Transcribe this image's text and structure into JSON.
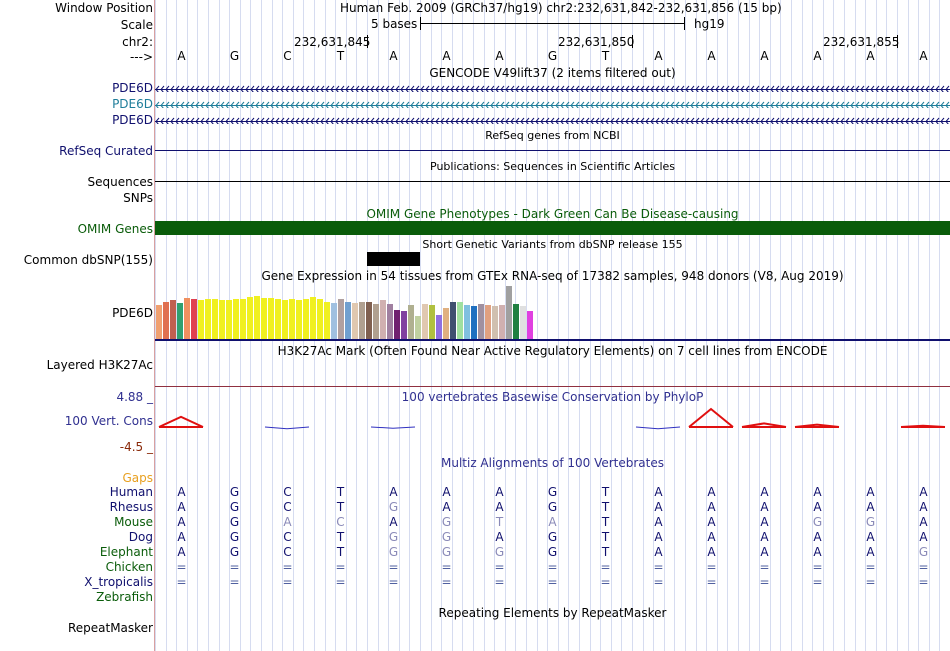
{
  "header": {
    "window_position_label": "Window Position",
    "window_position_text": "Human Feb. 2009 (GRCh37/hg19)   chr2:232,631,842-232,631,856 (15 bp)",
    "scale_label": "Scale",
    "scale_text": "5 bases",
    "scale_db": "hg19",
    "chrom_label": "chr2:",
    "coords": [
      "232,631,845",
      "232,631,850",
      "232,631,855"
    ],
    "strand_label": "--->"
  },
  "sequence": [
    "A",
    "G",
    "C",
    "T",
    "A",
    "A",
    "A",
    "G",
    "T",
    "A",
    "A",
    "A",
    "A",
    "A",
    "A"
  ],
  "tracks": {
    "gencode": {
      "title": "GENCODE V49lift37 (2 items filtered out)",
      "items": [
        {
          "label": "PDE6D",
          "color": "#10106e"
        },
        {
          "label": "PDE6D",
          "color": "#1e7d9a"
        },
        {
          "label": "PDE6D",
          "color": "#10106e"
        }
      ]
    },
    "refseq": {
      "title": "RefSeq genes from NCBI",
      "label": "RefSeq Curated"
    },
    "publications": {
      "title": "Publications: Sequences in Scientific Articles",
      "label": "Sequences"
    },
    "snps": {
      "label": "SNPs"
    },
    "omim": {
      "title": "OMIM Gene Phenotypes - Dark Green Can Be Disease-causing",
      "label": "OMIM Genes",
      "color": "#0a5c0a"
    },
    "dbsnp": {
      "title": "Short Genetic Variants from dbSNP release 155",
      "label": "Common dbSNP(155)"
    },
    "gtex": {
      "title": "Gene Expression in 54 tissues from GTEx RNA-seq of 17382 samples, 948 donors (V8, Aug 2019)",
      "label": "PDE6D"
    },
    "h3k27ac": {
      "title": "H3K27Ac Mark (Often Found Near Active Regulatory Elements) on 7 cell lines from ENCODE",
      "label": "Layered H3K27Ac"
    },
    "phylop": {
      "title": "100 vertebrates Basewise Conservation by PhyloP",
      "label": "100 Vert. Cons",
      "ymax": "4.88 _",
      "ymin": "-4.5 _"
    },
    "multiz": {
      "title": "Multiz Alignments of 100 Vertebrates",
      "gaps_label": "Gaps",
      "species": [
        {
          "name": "Human",
          "bases": [
            "A",
            "G",
            "C",
            "T",
            "A",
            "A",
            "A",
            "G",
            "T",
            "A",
            "A",
            "A",
            "A",
            "A",
            "A"
          ]
        },
        {
          "name": "Rhesus",
          "bases": [
            "A",
            "G",
            "C",
            "T",
            "G",
            "A",
            "A",
            "G",
            "T",
            "A",
            "A",
            "A",
            "A",
            "A",
            "A"
          ]
        },
        {
          "name": "Mouse",
          "bases": [
            "A",
            "G",
            "A",
            "C",
            "A",
            "G",
            "T",
            "A",
            "T",
            "A",
            "A",
            "A",
            "G",
            "G",
            "A"
          ]
        },
        {
          "name": "Dog",
          "bases": [
            "A",
            "G",
            "C",
            "T",
            "G",
            "G",
            "A",
            "G",
            "T",
            "A",
            "A",
            "A",
            "A",
            "A",
            "A"
          ]
        },
        {
          "name": "Elephant",
          "bases": [
            "A",
            "G",
            "C",
            "T",
            "G",
            "G",
            "G",
            "G",
            "T",
            "A",
            "A",
            "A",
            "A",
            "A",
            "G"
          ]
        },
        {
          "name": "Chicken",
          "bases": [
            "=",
            "=",
            "=",
            "=",
            "=",
            "=",
            "=",
            "=",
            "=",
            "=",
            "=",
            "=",
            "=",
            "=",
            "="
          ]
        },
        {
          "name": "X_tropicalis",
          "bases": [
            "=",
            "=",
            "=",
            "=",
            "=",
            "=",
            "=",
            "=",
            "=",
            "=",
            "=",
            "=",
            "=",
            "=",
            "="
          ]
        },
        {
          "name": "Zebrafish",
          "bases": []
        }
      ]
    },
    "repeatmasker": {
      "title": "Repeating Elements by RepeatMasker",
      "label": "RepeatMasker"
    }
  },
  "colors": {
    "navy": "#10106e",
    "teal": "#1e7d9a",
    "omim_green": "#0a5c0a",
    "orange_gaps": "#e8a020",
    "phylop_red": "#e01010",
    "phylop_blue": "#3030c0",
    "grid": "#d6dcf0"
  },
  "gtex_bars": [
    {
      "color": "#f0a070",
      "value": 0.62
    },
    {
      "color": "#e07050",
      "value": 0.68
    },
    {
      "color": "#c06050",
      "value": 0.7
    },
    {
      "color": "#30a070",
      "value": 0.66
    },
    {
      "color": "#f09060",
      "value": 0.74
    },
    {
      "color": "#e04050",
      "value": 0.72
    },
    {
      "color": "#f0f020",
      "value": 0.7
    },
    {
      "color": "#f0f020",
      "value": 0.72
    },
    {
      "color": "#f0f020",
      "value": 0.72
    },
    {
      "color": "#f0f020",
      "value": 0.7
    },
    {
      "color": "#f0f020",
      "value": 0.7
    },
    {
      "color": "#f0f020",
      "value": 0.72
    },
    {
      "color": "#f0f020",
      "value": 0.72
    },
    {
      "color": "#f0f020",
      "value": 0.76
    },
    {
      "color": "#f0f020",
      "value": 0.78
    },
    {
      "color": "#f0f020",
      "value": 0.74
    },
    {
      "color": "#f0f020",
      "value": 0.74
    },
    {
      "color": "#f0f020",
      "value": 0.72
    },
    {
      "color": "#f0f020",
      "value": 0.7
    },
    {
      "color": "#f0f020",
      "value": 0.72
    },
    {
      "color": "#f0f020",
      "value": 0.7
    },
    {
      "color": "#f0f020",
      "value": 0.72
    },
    {
      "color": "#f0f020",
      "value": 0.76
    },
    {
      "color": "#f0f020",
      "value": 0.72
    },
    {
      "color": "#f0f020",
      "value": 0.68
    },
    {
      "color": "#a0c0e0",
      "value": 0.66
    },
    {
      "color": "#b0a0a0",
      "value": 0.72
    },
    {
      "color": "#70a0d0",
      "value": 0.68
    },
    {
      "color": "#e0c8b0",
      "value": 0.66
    },
    {
      "color": "#b0a090",
      "value": 0.68
    },
    {
      "color": "#806050",
      "value": 0.68
    },
    {
      "color": "#b0a090",
      "value": 0.64
    },
    {
      "color": "#d0b0b0",
      "value": 0.7
    },
    {
      "color": "#a080a0",
      "value": 0.64
    },
    {
      "color": "#702070",
      "value": 0.52
    },
    {
      "color": "#8040a0",
      "value": 0.5
    },
    {
      "color": "#b0b090",
      "value": 0.62
    },
    {
      "color": "#c0d0a0",
      "value": 0.42
    },
    {
      "color": "#e0c8b0",
      "value": 0.64
    },
    {
      "color": "#b0c040",
      "value": 0.62
    },
    {
      "color": "#9070e0",
      "value": 0.44
    },
    {
      "color": "#e0b080",
      "value": 0.56
    },
    {
      "color": "#405070",
      "value": 0.68
    },
    {
      "color": "#a0e0a0",
      "value": 0.68
    },
    {
      "color": "#80c0e0",
      "value": 0.62
    },
    {
      "color": "#2070c0",
      "value": 0.6
    },
    {
      "color": "#a090a0",
      "value": 0.64
    },
    {
      "color": "#e0a080",
      "value": 0.62
    },
    {
      "color": "#d0c0b0",
      "value": 0.6
    },
    {
      "color": "#d0b0b0",
      "value": 0.62
    },
    {
      "color": "#a0a0a0",
      "value": 0.96
    },
    {
      "color": "#208040",
      "value": 0.64
    },
    {
      "color": "#e0e0e0",
      "value": 0.6
    },
    {
      "color": "#e040e0",
      "value": 0.5
    }
  ],
  "phylop_scores": [
    1.7,
    0,
    -0.3,
    0,
    -0.2,
    0,
    0,
    0,
    0,
    -0.3,
    3.0,
    0.6,
    0.4,
    0,
    0.2
  ]
}
